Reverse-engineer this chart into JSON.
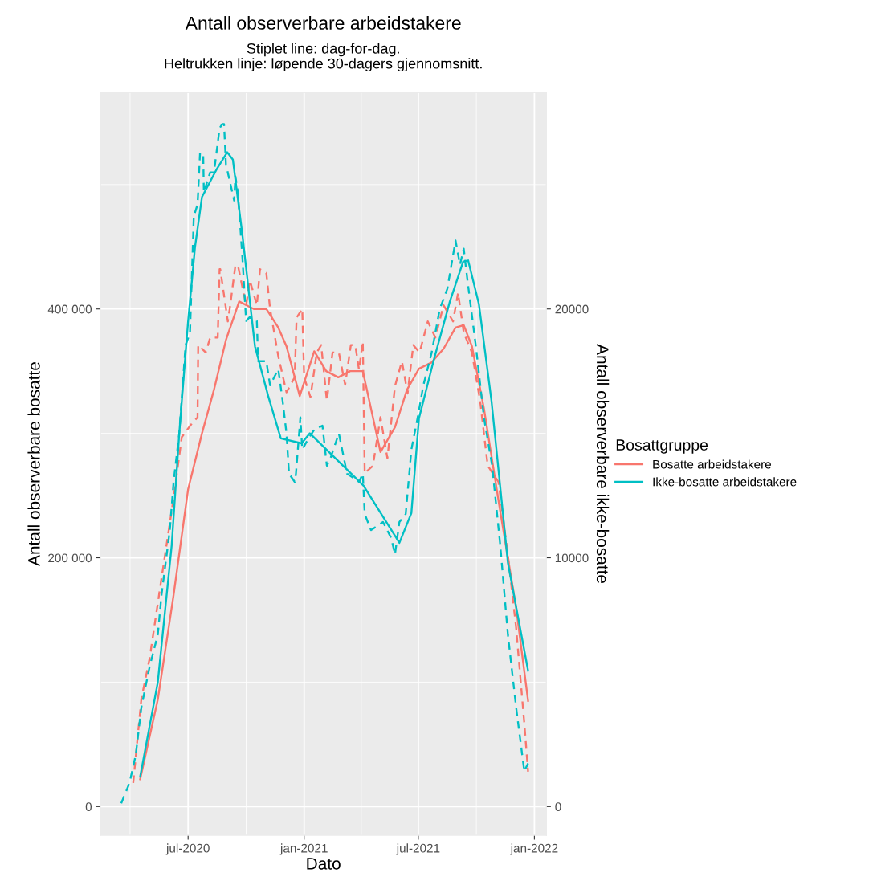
{
  "chart_data": {
    "type": "line",
    "title": "Antall observerbare arbeidstakere",
    "subtitle": "Stiplet line: dag-for-dag.\nHeltrukken linje: løpende 30-dagers gjennomsnitt.",
    "xlabel": "Dato",
    "ylabel": "Antall observerbare bosatte",
    "y2label": "Antall observerbare ikke-bosatte",
    "legend_title": "Bosattgruppe",
    "legend": "right",
    "grid": true,
    "xlim": [
      "2020-02-13",
      "2022-01-20"
    ],
    "xticks": [
      {
        "value": "2020-07-01",
        "label": "jul-2020"
      },
      {
        "value": "2021-01-01",
        "label": "jan-2021"
      },
      {
        "value": "2021-07-01",
        "label": "jul-2021"
      },
      {
        "value": "2022-01-01",
        "label": "jan-2022"
      }
    ],
    "ylim": [
      -23000,
      574000
    ],
    "yticks": [
      0,
      {
        "value": 200000,
        "label": "200 000"
      },
      {
        "value": 400000,
        "label": "400 000"
      }
    ],
    "y2lim": [
      -1150,
      28700
    ],
    "y2ticks": [
      0,
      10000,
      20000
    ],
    "series": [
      {
        "color": "#f8766d",
        "line_style": "dashed",
        "x": [
          "2020-04-05",
          "2020-04-18",
          "2020-05-01",
          "2020-05-20",
          "2020-06-08",
          "2020-06-21",
          "2020-07-04",
          "2020-07-16",
          "2020-07-17",
          "2020-07-29",
          "2020-08-05",
          "2020-08-17",
          "2020-08-20",
          "2020-08-21",
          "2020-09-02",
          "2020-09-05",
          "2020-09-14",
          "2020-09-18",
          "2020-10-01",
          "2020-10-07",
          "2020-10-18",
          "2020-10-23",
          "2020-11-02",
          "2020-11-08",
          "2020-11-21",
          "2020-12-04",
          "2020-12-17",
          "2020-12-20",
          "2020-12-29",
          "2021-01-01",
          "2021-01-11",
          "2021-01-21",
          "2021-01-28",
          "2021-02-06",
          "2021-02-15",
          "2021-02-25",
          "2021-03-07",
          "2021-03-16",
          "2021-03-23",
          "2021-03-29",
          "2021-04-04",
          "2021-04-07",
          "2021-04-20",
          "2021-05-02",
          "2021-05-13",
          "2021-05-25",
          "2021-06-05",
          "2021-06-14",
          "2021-06-23",
          "2021-07-03",
          "2021-07-16",
          "2021-07-28",
          "2021-08-10",
          "2021-08-25",
          "2021-09-02",
          "2021-09-11",
          "2021-09-24",
          "2021-10-07",
          "2021-10-19",
          "2021-11-05",
          "2021-11-20",
          "2021-12-03",
          "2021-12-16",
          "2021-12-22"
        ],
        "values": [
          19000,
          87000,
          119000,
          184000,
          248000,
          297000,
          306000,
          313000,
          371000,
          365000,
          377000,
          377000,
          432000,
          432000,
          390000,
          400000,
          435000,
          435000,
          403000,
          423000,
          403000,
          432000,
          429000,
          400000,
          362000,
          333000,
          345000,
          393000,
          400000,
          345000,
          329000,
          365000,
          371000,
          326000,
          365000,
          365000,
          339000,
          371000,
          371000,
          351000,
          374000,
          268000,
          274000,
          313000,
          280000,
          338000,
          358000,
          332000,
          371000,
          365000,
          390000,
          377000,
          403000,
          390000,
          413000,
          381000,
          365000,
          326000,
          274000,
          261000,
          202000,
          144000,
          67000,
          28000
        ]
      },
      {
        "name": "Bosatte arbeidstakere",
        "color": "#f8766d",
        "line_style": "solid",
        "x": [
          "2020-04-16",
          "2020-05-14",
          "2020-06-08",
          "2020-07-01",
          "2020-07-23",
          "2020-08-11",
          "2020-08-30",
          "2020-09-20",
          "2020-10-13",
          "2020-11-02",
          "2020-11-21",
          "2020-12-04",
          "2020-12-25",
          "2021-01-17",
          "2021-02-05",
          "2021-02-24",
          "2021-03-15",
          "2021-04-04",
          "2021-05-02",
          "2021-05-25",
          "2021-06-13",
          "2021-07-02",
          "2021-07-22",
          "2021-08-10",
          "2021-08-29",
          "2021-09-11",
          "2021-09-24",
          "2021-10-13",
          "2021-11-07",
          "2021-12-03",
          "2021-12-22"
        ],
        "values": [
          22000,
          86000,
          170000,
          255000,
          300000,
          335000,
          375000,
          406000,
          400000,
          400000,
          385000,
          370000,
          330000,
          366000,
          350000,
          345000,
          350000,
          350000,
          285000,
          305000,
          335000,
          352000,
          357000,
          368000,
          385000,
          387000,
          370000,
          320000,
          240000,
          160000,
          85000
        ]
      },
      {
        "color": "#00bfc4",
        "line_style": "dashed",
        "axis": "y2",
        "x": [
          "2020-03-17",
          "2020-03-30",
          "2020-04-09",
          "2020-04-18",
          "2020-05-01",
          "2020-05-14",
          "2020-05-20",
          "2020-06-02",
          "2020-06-08",
          "2020-06-17",
          "2020-06-27",
          "2020-07-04",
          "2020-07-10",
          "2020-07-16",
          "2020-07-20",
          "2020-07-25",
          "2020-07-26",
          "2020-08-05",
          "2020-08-11",
          "2020-08-20",
          "2020-08-24",
          "2020-08-27",
          "2020-08-30",
          "2020-09-12",
          "2020-09-14",
          "2020-09-18",
          "2020-09-25",
          "2020-10-01",
          "2020-10-07",
          "2020-10-18",
          "2020-10-20",
          "2020-11-02",
          "2020-11-08",
          "2020-11-21",
          "2020-11-28",
          "2020-12-04",
          "2020-12-08",
          "2020-12-17",
          "2020-12-19",
          "2020-12-26",
          "2020-12-29",
          "2021-01-05",
          "2021-01-17",
          "2021-01-30",
          "2021-02-06",
          "2021-02-12",
          "2021-02-25",
          "2021-03-10",
          "2021-03-29",
          "2021-04-04",
          "2021-04-07",
          "2021-04-17",
          "2021-05-06",
          "2021-05-19",
          "2021-05-25",
          "2021-06-01",
          "2021-06-11",
          "2021-06-20",
          "2021-06-30",
          "2021-07-09",
          "2021-07-22",
          "2021-08-04",
          "2021-08-16",
          "2021-08-29",
          "2021-09-05",
          "2021-09-11",
          "2021-09-17",
          "2021-09-30",
          "2021-10-13",
          "2021-10-26",
          "2021-11-08",
          "2021-11-20",
          "2021-12-03",
          "2021-12-16",
          "2021-12-22"
        ],
        "values": [
          130,
          940,
          2070,
          4000,
          5620,
          6910,
          8530,
          11100,
          13050,
          15000,
          18550,
          19030,
          23720,
          24200,
          26300,
          26140,
          24690,
          25490,
          25490,
          27270,
          27430,
          27430,
          25820,
          24360,
          25330,
          24690,
          22100,
          19520,
          19680,
          19520,
          17900,
          17900,
          16930,
          17580,
          16280,
          15000,
          13380,
          13050,
          13380,
          15640,
          14350,
          14670,
          15150,
          15310,
          13700,
          14020,
          15000,
          13380,
          13050,
          13380,
          11760,
          11110,
          11440,
          10790,
          10140,
          11440,
          11760,
          14350,
          15640,
          16930,
          18230,
          20000,
          20810,
          22750,
          21780,
          22420,
          21130,
          18550,
          15640,
          13700,
          10470,
          6910,
          4000,
          1420,
          1740
        ]
      },
      {
        "name": "Ikke-bosatte arbeidstakere",
        "color": "#00bfc4",
        "line_style": "solid",
        "axis": "y2",
        "x": [
          "2020-04-16",
          "2020-05-14",
          "2020-06-05",
          "2020-06-17",
          "2020-07-01",
          "2020-07-12",
          "2020-07-23",
          "2020-08-15",
          "2020-09-01",
          "2020-09-10",
          "2020-09-25",
          "2020-10-15",
          "2020-11-05",
          "2020-11-25",
          "2020-12-28",
          "2021-01-10",
          "2021-04-05",
          "2021-06-01",
          "2021-06-20",
          "2021-07-02",
          "2021-07-25",
          "2021-08-20",
          "2021-09-10",
          "2021-09-18",
          "2021-10-05",
          "2021-10-25",
          "2021-11-20",
          "2021-12-22"
        ],
        "values": [
          1200,
          5000,
          10500,
          15000,
          19500,
          22500,
          24500,
          25600,
          26300,
          26000,
          23000,
          18500,
          16500,
          14800,
          14600,
          15000,
          12900,
          10600,
          11800,
          15600,
          17900,
          20300,
          21900,
          21950,
          20200,
          16300,
          9800,
          5460
        ]
      }
    ]
  }
}
